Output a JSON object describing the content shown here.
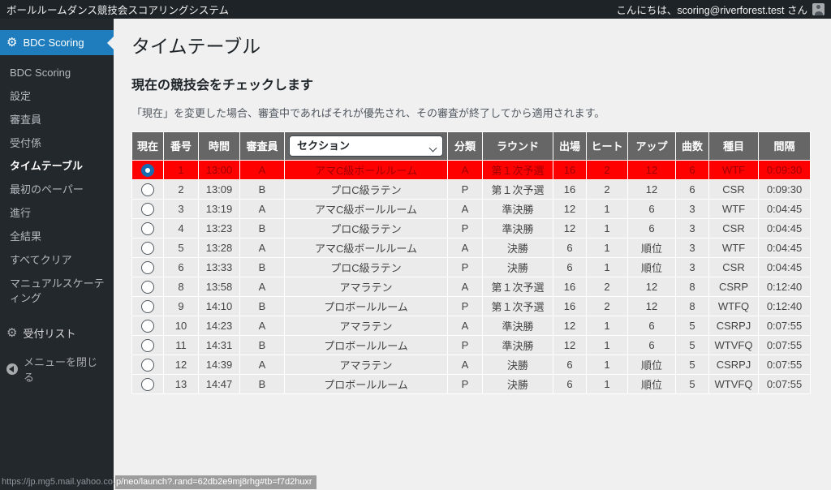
{
  "topbar": {
    "app_title": "ボールルームダンス競技会スコアリングシステム",
    "greeting": "こんにちは、scoring@riverforest.test さん"
  },
  "sidebar": {
    "main_item": "BDC Scoring",
    "submenu": [
      "BDC Scoring",
      "設定",
      "審査員",
      "受付係",
      "タイムテーブル",
      "最初のペーパー",
      "進行",
      "全結果",
      "すべてクリア",
      "マニュアルスケーティング"
    ],
    "current_submenu": "タイムテーブル",
    "reception_list": "受付リスト",
    "collapse_menu": "メニューを閉じる"
  },
  "page": {
    "title": "タイムテーブル",
    "section_heading": "現在の競技会をチェックします",
    "note": "「現在」を変更した場合、審査中であればそれが優先され、その審査が終了してから適用されます。"
  },
  "table": {
    "headers": [
      "現在",
      "番号",
      "時間",
      "審査員",
      "セクション",
      "分類",
      "ラウンド",
      "出場",
      "ヒート",
      "アップ",
      "曲数",
      "種目",
      "間隔"
    ],
    "section_select": {
      "value": "セクション"
    },
    "rows": [
      {
        "selected": true,
        "cells": [
          "1",
          "13:00",
          "A",
          "アマC級ボールルーム",
          "A",
          "第１次予選",
          "16",
          "2",
          "12",
          "6",
          "WTF",
          "0:09:30"
        ]
      },
      {
        "selected": false,
        "cells": [
          "2",
          "13:09",
          "B",
          "プロC級ラテン",
          "P",
          "第１次予選",
          "16",
          "2",
          "12",
          "6",
          "CSR",
          "0:09:30"
        ]
      },
      {
        "selected": false,
        "cells": [
          "3",
          "13:19",
          "A",
          "アマC級ボールルーム",
          "A",
          "準決勝",
          "12",
          "1",
          "6",
          "3",
          "WTF",
          "0:04:45"
        ]
      },
      {
        "selected": false,
        "cells": [
          "4",
          "13:23",
          "B",
          "プロC級ラテン",
          "P",
          "準決勝",
          "12",
          "1",
          "6",
          "3",
          "CSR",
          "0:04:45"
        ]
      },
      {
        "selected": false,
        "cells": [
          "5",
          "13:28",
          "A",
          "アマC級ボールルーム",
          "A",
          "決勝",
          "6",
          "1",
          "順位",
          "3",
          "WTF",
          "0:04:45"
        ]
      },
      {
        "selected": false,
        "cells": [
          "6",
          "13:33",
          "B",
          "プロC級ラテン",
          "P",
          "決勝",
          "6",
          "1",
          "順位",
          "3",
          "CSR",
          "0:04:45"
        ]
      },
      {
        "selected": false,
        "cells": [
          "8",
          "13:58",
          "A",
          "アマラテン",
          "A",
          "第１次予選",
          "16",
          "2",
          "12",
          "8",
          "CSRP",
          "0:12:40"
        ]
      },
      {
        "selected": false,
        "cells": [
          "9",
          "14:10",
          "B",
          "プロボールルーム",
          "P",
          "第１次予選",
          "16",
          "2",
          "12",
          "8",
          "WTFQ",
          "0:12:40"
        ]
      },
      {
        "selected": false,
        "cells": [
          "10",
          "14:23",
          "A",
          "アマラテン",
          "A",
          "準決勝",
          "12",
          "1",
          "6",
          "5",
          "CSRPJ",
          "0:07:55"
        ]
      },
      {
        "selected": false,
        "cells": [
          "11",
          "14:31",
          "B",
          "プロボールルーム",
          "P",
          "準決勝",
          "12",
          "1",
          "6",
          "5",
          "WTVFQ",
          "0:07:55"
        ]
      },
      {
        "selected": false,
        "cells": [
          "12",
          "14:39",
          "A",
          "アマラテン",
          "A",
          "決勝",
          "6",
          "1",
          "順位",
          "5",
          "CSRPJ",
          "0:07:55"
        ]
      },
      {
        "selected": false,
        "cells": [
          "13",
          "14:47",
          "B",
          "プロボールルーム",
          "P",
          "決勝",
          "6",
          "1",
          "順位",
          "5",
          "WTVFQ",
          "0:07:55"
        ]
      }
    ]
  },
  "statusbar": {
    "url_left": "https://jp.mg5.mail.yahoo.co.",
    "url_right": "p/neo/launch?.rand=62db2e9mj8rhg#tb=f7d2huxr"
  },
  "colors": {
    "accent_blue": "#1f7dbe",
    "selected_row_red": "#ff0000",
    "selected_row_text": "#9e0000",
    "header_gray": "#666666",
    "radio_checked_blue": "#176cb0"
  }
}
